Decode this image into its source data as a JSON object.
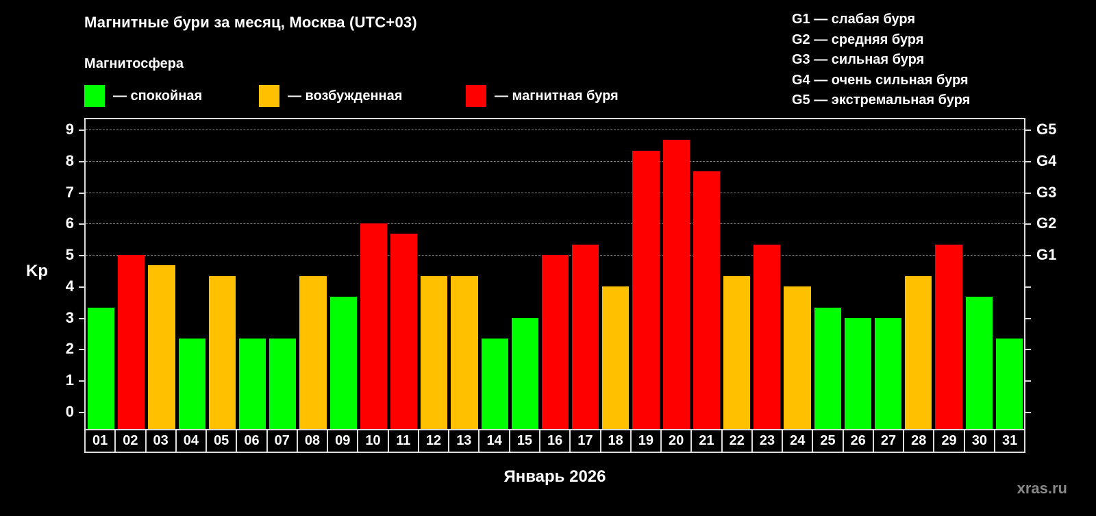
{
  "header": {
    "title": "Магнитные бури за месяц, Москва (UTC+03)",
    "subtitle": "Магнитосфера"
  },
  "legend": [
    {
      "label": "— спокойная",
      "color": "#00ff00"
    },
    {
      "label": "— возбужденная",
      "color": "#ffc000"
    },
    {
      "label": "— магнитная буря",
      "color": "#ff0000"
    }
  ],
  "storm_scale": [
    "G1 — слабая буря",
    "G2 — средняя буря",
    "G3 — сильная буря",
    "G4 — очень сильная буря",
    "G5 — экстремальная буря"
  ],
  "axis": {
    "ylabel": "Kp",
    "xlabel": "Январь 2026",
    "yticks": [
      "0",
      "1",
      "2",
      "3",
      "4",
      "5",
      "6",
      "7",
      "8",
      "9"
    ],
    "gticks": [
      {
        "label": "G1",
        "kp": 5
      },
      {
        "label": "G2",
        "kp": 6
      },
      {
        "label": "G3",
        "kp": 7
      },
      {
        "label": "G4",
        "kp": 8
      },
      {
        "label": "G5",
        "kp": 9
      }
    ]
  },
  "watermark": "xras.ru",
  "chart_data": {
    "type": "bar",
    "title": "Магнитные бури за месяц, Москва (UTC+03)",
    "xlabel": "Январь 2026",
    "ylabel": "Kp",
    "ylim": [
      0,
      9
    ],
    "grid": true,
    "legend_position": "top",
    "categories": [
      "01",
      "02",
      "03",
      "04",
      "05",
      "06",
      "07",
      "08",
      "09",
      "10",
      "11",
      "12",
      "13",
      "14",
      "15",
      "16",
      "17",
      "18",
      "19",
      "20",
      "21",
      "22",
      "23",
      "24",
      "25",
      "26",
      "27",
      "28",
      "29",
      "30",
      "31"
    ],
    "values": [
      3.33,
      5.0,
      4.67,
      2.33,
      4.33,
      2.33,
      2.33,
      4.33,
      3.67,
      6.0,
      5.67,
      4.33,
      4.33,
      2.33,
      3.0,
      5.0,
      5.33,
      4.0,
      8.33,
      8.67,
      7.67,
      4.33,
      5.33,
      4.0,
      3.33,
      3.0,
      3.0,
      4.33,
      5.33,
      3.67,
      2.33
    ],
    "status": [
      "calm",
      "storm",
      "excited",
      "calm",
      "excited",
      "calm",
      "calm",
      "excited",
      "calm",
      "storm",
      "storm",
      "excited",
      "excited",
      "calm",
      "calm",
      "storm",
      "storm",
      "excited",
      "storm",
      "storm",
      "storm",
      "excited",
      "storm",
      "excited",
      "calm",
      "calm",
      "calm",
      "excited",
      "storm",
      "calm",
      "calm"
    ],
    "colors": {
      "calm": "#00ff00",
      "excited": "#ffc000",
      "storm": "#ff0000"
    },
    "secondary_axis": {
      "G1": 5,
      "G2": 6,
      "G3": 7,
      "G4": 8,
      "G5": 9
    }
  }
}
